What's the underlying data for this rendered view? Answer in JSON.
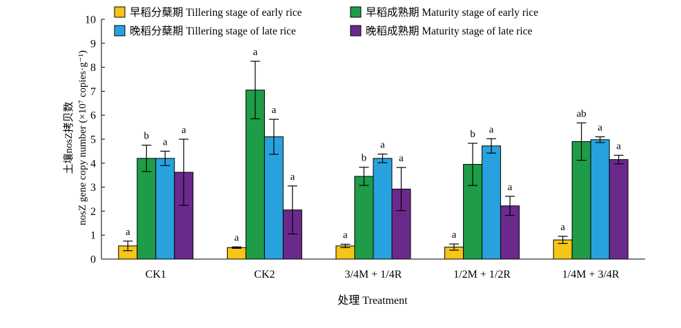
{
  "chart_data": {
    "type": "bar",
    "title": "",
    "xlabel": "处理 Treatment",
    "ylabel_cn": "土壤nosZ拷贝数",
    "ylabel_en": "nosZ gene copy number (×10⁷ copies·g⁻¹)",
    "ylim": [
      0,
      10
    ],
    "yticks": [
      "0",
      "1",
      "2",
      "3",
      "4",
      "5",
      "6",
      "7",
      "8",
      "9",
      "10"
    ],
    "categories": [
      "CK1",
      "CK2",
      "3/4M + 1/4R",
      "1/2M + 1/2R",
      "1/4M + 3/4R"
    ],
    "legend_position": "top",
    "series": [
      {
        "name": "早稻分蘖期 Tillering stage of early rice",
        "color": "#f5c518",
        "values": [
          0.55,
          0.48,
          0.55,
          0.5,
          0.8
        ],
        "errors": [
          0.2,
          0.03,
          0.07,
          0.13,
          0.15
        ],
        "letters": [
          "a",
          "a",
          "a",
          "a",
          "a"
        ]
      },
      {
        "name": "早稻成熟期 Maturity stage of early rice",
        "color": "#1e9c47",
        "values": [
          4.2,
          7.05,
          3.45,
          3.95,
          4.9
        ],
        "errors": [
          0.55,
          1.2,
          0.38,
          0.88,
          0.78
        ],
        "letters": [
          "b",
          "a",
          "b",
          "b",
          "ab"
        ]
      },
      {
        "name": "晚稻分蘖期 Tillering stage of late rice",
        "color": "#28a2de",
        "values": [
          4.2,
          5.1,
          4.2,
          4.72,
          4.98
        ],
        "errors": [
          0.3,
          0.73,
          0.18,
          0.3,
          0.12
        ],
        "letters": [
          "a",
          "a",
          "a",
          "a",
          "a"
        ]
      },
      {
        "name": "晚稻成熟期 Maturity stage of late rice",
        "color": "#6a2a8c",
        "values": [
          3.62,
          2.05,
          2.92,
          2.22,
          4.15
        ],
        "errors": [
          1.38,
          1.0,
          0.9,
          0.4,
          0.18
        ],
        "letters": [
          "a",
          "a",
          "a",
          "a",
          "a"
        ]
      }
    ]
  }
}
